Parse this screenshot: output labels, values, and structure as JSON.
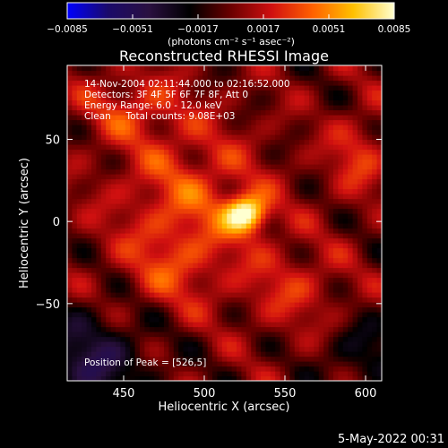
{
  "chart_data": {
    "type": "heatmap",
    "title": "Reconstructed RHESSI Image",
    "xlabel": "Heliocentric X (arcsec)",
    "ylabel": "Heliocentric Y (arcsec)",
    "xlim": [
      415,
      610
    ],
    "ylim": [
      -97,
      95
    ],
    "x_ticks": [
      450,
      500,
      550,
      600
    ],
    "y_ticks": [
      -50,
      0,
      50
    ],
    "colorbar": {
      "range": [
        -0.0085,
        0.0085
      ],
      "ticks": [
        "-0.0085",
        "-0.0051",
        "-0.0017",
        "0.0017",
        "0.0051",
        "0.0085"
      ],
      "tick_values": [
        -0.0085,
        -0.0051,
        -0.0017,
        0.0017,
        0.0051,
        0.0085
      ],
      "unit_label": "(photons cm⁻² s⁻¹ asec⁻²)",
      "colormap_stops": [
        "#0000ff",
        "#1a0a6a",
        "#2a1040",
        "#000000",
        "#6a0000",
        "#d01010",
        "#ff6000",
        "#ffc000",
        "#ffffd0"
      ]
    },
    "annotations": [
      "14-Nov-2004 02:11:44.000 to 02:16:52.000",
      "Detectors: 3F 4F 5F 6F 7F 8F, Att 0",
      "Energy Range: 6.0 - 12.0 keV",
      "Clean     Total counts: 9.08E+03"
    ],
    "peak_label": "Position of Peak = [526,5]",
    "peak": {
      "x": 526,
      "y": 5,
      "value": 0.0085
    },
    "date_stamp": "5-May-2022 00:31"
  }
}
